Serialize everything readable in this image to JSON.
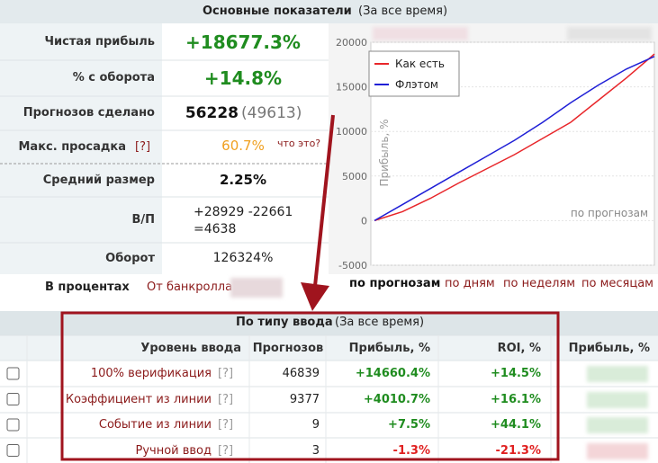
{
  "header": {
    "title": "Основные показатели",
    "subtitle": "(За все время)"
  },
  "stats": [
    {
      "label": "Чистая прибыль",
      "value": "+18677.3%"
    },
    {
      "label": "% с оборота",
      "value": "+14.8%"
    },
    {
      "label": "Прогнозов сделано",
      "value": "56228",
      "extra": "(49613)"
    },
    {
      "label": "Макс. просадка",
      "help": "[?]",
      "value": "60.7%",
      "extra": "что это?"
    },
    {
      "label": "Средний размер",
      "value": "2.25%"
    },
    {
      "label": "В/П",
      "value": "+28929 -22661",
      "extra": "=4638"
    },
    {
      "label": "Оборот",
      "value": "126324%"
    }
  ],
  "percent_mode": {
    "label": "В процентах",
    "option": "От банкролла"
  },
  "chart": {
    "type": "line",
    "y_label": "Прибыль, %",
    "annotation": "по прогнозам",
    "ylim": [
      -5000,
      20000
    ],
    "yticks": [
      -5000,
      0,
      5000,
      10000,
      15000,
      20000
    ],
    "grid": true,
    "legend": "top-left",
    "series": [
      {
        "name": "Как есть",
        "color": "#e8262a",
        "values": [
          0,
          1000,
          2500,
          4200,
          5800,
          7400,
          9200,
          11000,
          13500,
          16000,
          18677.3
        ]
      },
      {
        "name": "Флэтом",
        "color": "#1f1fd6",
        "values": [
          0,
          1800,
          3600,
          5400,
          7200,
          9000,
          11000,
          13200,
          15200,
          17000,
          18400
        ]
      }
    ]
  },
  "chart_nav": [
    "по прогнозам",
    "по дням",
    "по неделям",
    "по месяцам"
  ],
  "table": {
    "title": "По типу ввода",
    "subtitle": "(За все время)",
    "columns": [
      "Уровень ввода",
      "Прогнозов",
      "Прибыль, %",
      "ROI, %",
      "Прибыль, %"
    ],
    "rows": [
      {
        "level": "100% верификация",
        "help": "[?]",
        "count": "46839",
        "profit": "+14660.4%",
        "roi": "+14.5%"
      },
      {
        "level": "Коэффициент из линии",
        "help": "[?]",
        "count": "9377",
        "profit": "+4010.7%",
        "roi": "+16.1%"
      },
      {
        "level": "Событие из линии",
        "help": "[?]",
        "count": "9",
        "profit": "+7.5%",
        "roi": "+44.1%"
      },
      {
        "level": "Ручной ввод",
        "help": "[?]",
        "count": "3",
        "profit": "-1.3%",
        "roi": "-21.3%"
      }
    ]
  }
}
